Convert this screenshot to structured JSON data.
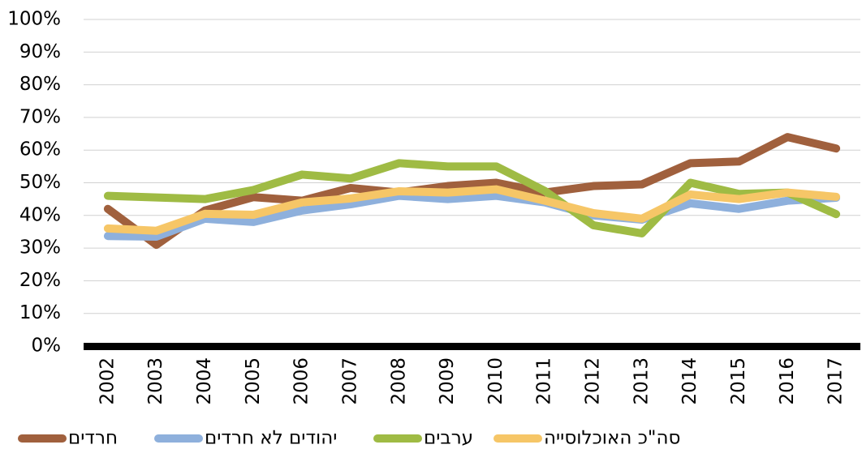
{
  "chart_data": {
    "type": "line",
    "categories": [
      "2002",
      "2003",
      "2004",
      "2005",
      "2006",
      "2007",
      "2008",
      "2009",
      "2010",
      "2011",
      "2012",
      "2013",
      "2014",
      "2015",
      "2016",
      "2017"
    ],
    "series": [
      {
        "name": "חרדים",
        "color": "#a0603d",
        "values": [
          42,
          31,
          41.5,
          45.6,
          44.5,
          48.4,
          47,
          49,
          50,
          47,
          49,
          49.5,
          56,
          56.5,
          64,
          60.5
        ]
      },
      {
        "name": "יהודים לא חרדים",
        "color": "#8eb0dc",
        "values": [
          33.7,
          33.5,
          39,
          38,
          41.5,
          43.4,
          46,
          45,
          46,
          44,
          40,
          38.7,
          43.7,
          42,
          44.5,
          45.4
        ]
      },
      {
        "name": "ערבים",
        "color": "#9fbb44",
        "values": [
          46,
          45.5,
          45,
          47.8,
          52.5,
          51.3,
          56,
          55,
          55,
          47.5,
          37,
          34.5,
          50,
          46.6,
          47,
          40.4
        ]
      },
      {
        "name": "סה\"כ האוכלוסייה",
        "color": "#f6c667",
        "values": [
          36,
          35.3,
          40.5,
          40.2,
          44,
          45.2,
          47.4,
          47,
          48,
          44.5,
          40.7,
          39,
          46.4,
          45,
          47,
          45.7
        ]
      }
    ],
    "ylim": [
      0,
      100
    ],
    "yticks": [
      {
        "value": 0,
        "label": "0%"
      },
      {
        "value": 10,
        "label": "10%"
      },
      {
        "value": 20,
        "label": "20%"
      },
      {
        "value": 30,
        "label": "30%"
      },
      {
        "value": 40,
        "label": "40%"
      },
      {
        "value": 50,
        "label": "50%"
      },
      {
        "value": 60,
        "label": "60%"
      },
      {
        "value": 70,
        "label": "70%"
      },
      {
        "value": 80,
        "label": "80%"
      },
      {
        "value": 90,
        "label": "90%"
      },
      {
        "value": 100,
        "label": "100%"
      }
    ],
    "grid": true,
    "legend": "bottom"
  }
}
